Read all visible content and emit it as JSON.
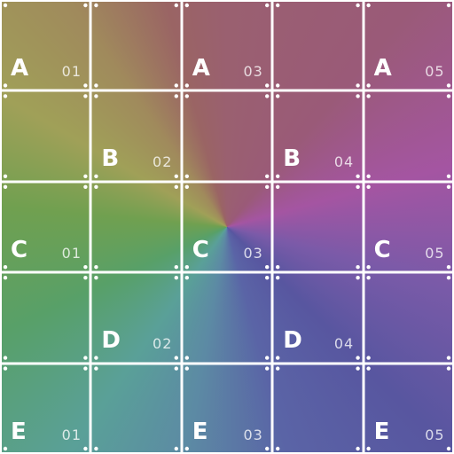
{
  "cells": [
    {
      "letter": "A",
      "num": "01"
    },
    {
      "letter": "",
      "num": ""
    },
    {
      "letter": "A",
      "num": "03"
    },
    {
      "letter": "",
      "num": ""
    },
    {
      "letter": "A",
      "num": "05"
    },
    {
      "letter": "",
      "num": ""
    },
    {
      "letter": "B",
      "num": "02"
    },
    {
      "letter": "",
      "num": ""
    },
    {
      "letter": "B",
      "num": "04"
    },
    {
      "letter": "",
      "num": ""
    },
    {
      "letter": "C",
      "num": "01"
    },
    {
      "letter": "",
      "num": ""
    },
    {
      "letter": "C",
      "num": "03"
    },
    {
      "letter": "",
      "num": ""
    },
    {
      "letter": "C",
      "num": "05"
    },
    {
      "letter": "",
      "num": ""
    },
    {
      "letter": "D",
      "num": "02"
    },
    {
      "letter": "",
      "num": ""
    },
    {
      "letter": "D",
      "num": "04"
    },
    {
      "letter": "",
      "num": ""
    },
    {
      "letter": "E",
      "num": "01"
    },
    {
      "letter": "",
      "num": ""
    },
    {
      "letter": "E",
      "num": "03"
    },
    {
      "letter": "",
      "num": ""
    },
    {
      "letter": "E",
      "num": "05"
    }
  ],
  "colors": {
    "grid_line": "#ffffff",
    "label_text": "#ffffff"
  }
}
